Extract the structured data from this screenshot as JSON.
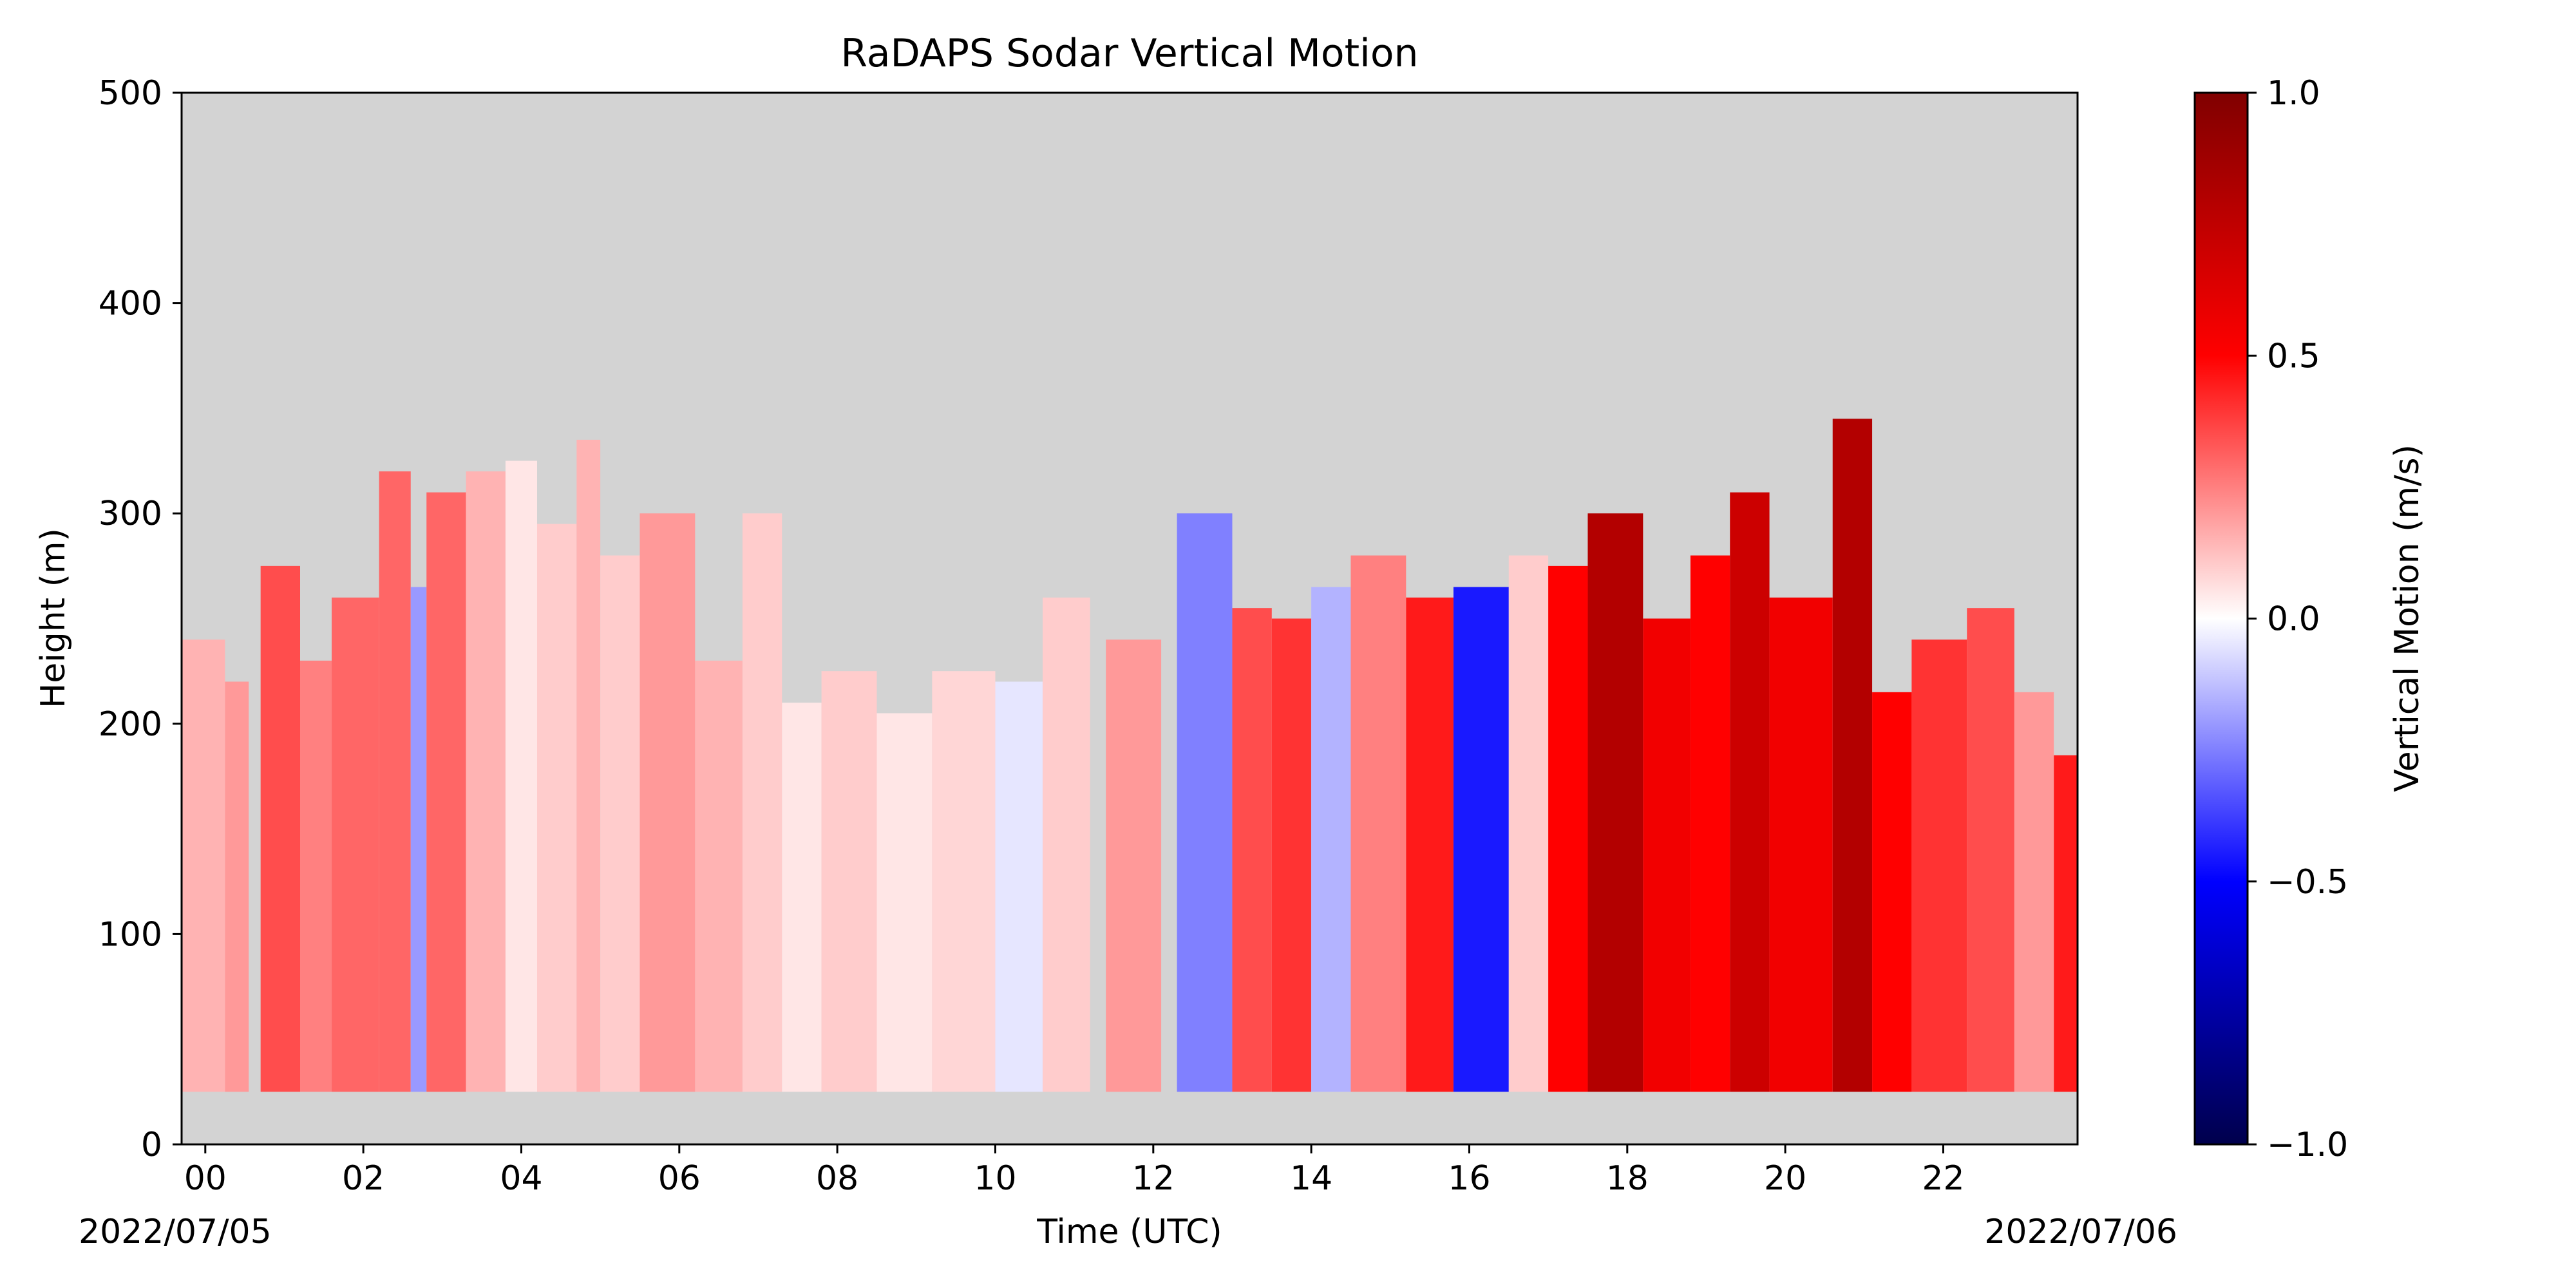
{
  "chart_data": {
    "type": "heatmap",
    "title": "RaDAPS Sodar Vertical Motion",
    "xlabel": "Time (UTC)",
    "ylabel": "Height (m)",
    "date_start": "2022/07/05",
    "date_end": "2022/07/06",
    "xlim_hours": [
      -0.3,
      23.7
    ],
    "ylim": [
      0,
      500
    ],
    "x_ticks": [
      {
        "value": 0,
        "label": "00"
      },
      {
        "value": 2,
        "label": "02"
      },
      {
        "value": 4,
        "label": "04"
      },
      {
        "value": 6,
        "label": "06"
      },
      {
        "value": 8,
        "label": "08"
      },
      {
        "value": 10,
        "label": "10"
      },
      {
        "value": 12,
        "label": "12"
      },
      {
        "value": 14,
        "label": "14"
      },
      {
        "value": 16,
        "label": "16"
      },
      {
        "value": 18,
        "label": "18"
      },
      {
        "value": 20,
        "label": "20"
      },
      {
        "value": 22,
        "label": "22"
      }
    ],
    "y_ticks": [
      {
        "value": 0,
        "label": "0"
      },
      {
        "value": 100,
        "label": "100"
      },
      {
        "value": 200,
        "label": "200"
      },
      {
        "value": 300,
        "label": "300"
      },
      {
        "value": 400,
        "label": "400"
      },
      {
        "value": 500,
        "label": "500"
      }
    ],
    "background_color": "#d3d3d3",
    "colormap": "seismic",
    "colorbar": {
      "label": "Vertical Motion (m/s)",
      "range": [
        -1.0,
        1.0
      ],
      "ticks": [
        {
          "value": 1.0,
          "label": "1.0"
        },
        {
          "value": 0.5,
          "label": "0.5"
        },
        {
          "value": 0.0,
          "label": "0.0"
        },
        {
          "value": -0.5,
          "label": "−0.5"
        },
        {
          "value": -1.0,
          "label": "−1.0"
        }
      ],
      "stops": [
        {
          "value": -1.0,
          "color": "#00004c"
        },
        {
          "value": -0.5,
          "color": "#0000ff"
        },
        {
          "value": 0.0,
          "color": "#ffffff"
        },
        {
          "value": 0.5,
          "color": "#ff0000"
        },
        {
          "value": 1.0,
          "color": "#800000"
        }
      ]
    },
    "min_height_m": 25,
    "segments": [
      {
        "start": -0.3,
        "end": 0.25,
        "top": 240,
        "value": 0.15
      },
      {
        "start": 0.25,
        "end": 0.55,
        "top": 220,
        "value": 0.2
      },
      {
        "start": 0.7,
        "end": 1.2,
        "top": 275,
        "value": 0.35
      },
      {
        "start": 1.2,
        "end": 1.6,
        "top": 230,
        "value": 0.25
      },
      {
        "start": 1.6,
        "end": 2.2,
        "top": 260,
        "value": 0.3
      },
      {
        "start": 2.2,
        "end": 2.6,
        "top": 320,
        "value": 0.3
      },
      {
        "start": 2.6,
        "end": 2.8,
        "top": 265,
        "value": -0.2
      },
      {
        "start": 2.8,
        "end": 3.3,
        "top": 310,
        "value": 0.3
      },
      {
        "start": 3.3,
        "end": 3.8,
        "top": 320,
        "value": 0.15
      },
      {
        "start": 3.8,
        "end": 4.2,
        "top": 325,
        "value": 0.05
      },
      {
        "start": 4.2,
        "end": 4.7,
        "top": 295,
        "value": 0.1
      },
      {
        "start": 4.7,
        "end": 5.0,
        "top": 335,
        "value": 0.15
      },
      {
        "start": 5.0,
        "end": 5.5,
        "top": 280,
        "value": 0.1
      },
      {
        "start": 5.5,
        "end": 6.2,
        "top": 300,
        "value": 0.2
      },
      {
        "start": 6.2,
        "end": 6.8,
        "top": 230,
        "value": 0.15
      },
      {
        "start": 6.8,
        "end": 7.3,
        "top": 300,
        "value": 0.1
      },
      {
        "start": 7.3,
        "end": 7.8,
        "top": 210,
        "value": 0.05
      },
      {
        "start": 7.8,
        "end": 8.5,
        "top": 225,
        "value": 0.1
      },
      {
        "start": 8.5,
        "end": 9.2,
        "top": 205,
        "value": 0.05
      },
      {
        "start": 9.2,
        "end": 10.0,
        "top": 225,
        "value": 0.08
      },
      {
        "start": 10.0,
        "end": 10.6,
        "top": 220,
        "value": -0.05
      },
      {
        "start": 10.6,
        "end": 11.2,
        "top": 260,
        "value": 0.1
      },
      {
        "start": 11.4,
        "end": 12.1,
        "top": 240,
        "value": 0.2
      },
      {
        "start": 12.3,
        "end": 13.0,
        "top": 300,
        "value": -0.25
      },
      {
        "start": 13.0,
        "end": 13.5,
        "top": 255,
        "value": 0.35
      },
      {
        "start": 13.5,
        "end": 14.0,
        "top": 250,
        "value": 0.4
      },
      {
        "start": 14.0,
        "end": 14.5,
        "top": 265,
        "value": -0.15
      },
      {
        "start": 14.5,
        "end": 15.2,
        "top": 280,
        "value": 0.25
      },
      {
        "start": 15.2,
        "end": 15.8,
        "top": 260,
        "value": 0.45
      },
      {
        "start": 15.8,
        "end": 16.5,
        "top": 265,
        "value": -0.45
      },
      {
        "start": 16.5,
        "end": 17.0,
        "top": 280,
        "value": 0.1
      },
      {
        "start": 17.0,
        "end": 17.5,
        "top": 275,
        "value": 0.5
      },
      {
        "start": 17.5,
        "end": 18.2,
        "top": 300,
        "value": 0.8
      },
      {
        "start": 18.2,
        "end": 18.8,
        "top": 250,
        "value": 0.55
      },
      {
        "start": 18.8,
        "end": 19.3,
        "top": 280,
        "value": 0.5
      },
      {
        "start": 19.3,
        "end": 19.8,
        "top": 310,
        "value": 0.7
      },
      {
        "start": 19.8,
        "end": 20.6,
        "top": 260,
        "value": 0.55
      },
      {
        "start": 20.6,
        "end": 21.1,
        "top": 345,
        "value": 0.8
      },
      {
        "start": 21.1,
        "end": 21.6,
        "top": 215,
        "value": 0.5
      },
      {
        "start": 21.6,
        "end": 22.3,
        "top": 240,
        "value": 0.4
      },
      {
        "start": 22.3,
        "end": 22.9,
        "top": 255,
        "value": 0.35
      },
      {
        "start": 22.9,
        "end": 23.4,
        "top": 215,
        "value": 0.2
      },
      {
        "start": 23.4,
        "end": 23.7,
        "top": 185,
        "value": 0.45
      }
    ]
  }
}
